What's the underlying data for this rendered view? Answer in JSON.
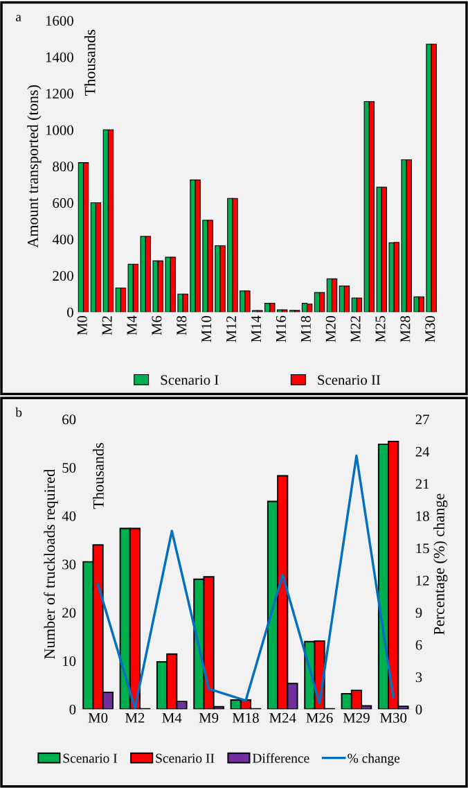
{
  "chart_data": [
    {
      "type": "bar",
      "categories": [
        "M0",
        null,
        "M2",
        null,
        "M4",
        null,
        "M6",
        null,
        "M8",
        null,
        "M10",
        null,
        "M12",
        null,
        "M14",
        null,
        "M16",
        null,
        "M18",
        null,
        "M20",
        null,
        "M22",
        null,
        "M25",
        null,
        "M28",
        null,
        "M30"
      ],
      "ylabel": "Amount transported (tons)",
      "annotations": [
        "a",
        "Thousands"
      ],
      "ylim": [
        0,
        1600
      ],
      "yticks": [
        0,
        200,
        400,
        600,
        800,
        1000,
        1200,
        1400,
        1600
      ],
      "legend": "bottom",
      "grid": false,
      "series": [
        {
          "name": "Scenario I",
          "color": "#00b050",
          "values": [
            820,
            600,
            1000,
            132,
            262,
            415,
            281,
            301,
            99,
            725,
            504,
            364,
            624,
            116,
            8,
            48,
            12,
            9,
            48,
            107,
            182,
            143,
            77,
            1155,
            685,
            380,
            836,
            83,
            1470
          ]
        },
        {
          "name": "Scenario II",
          "color": "#ff0000",
          "values": [
            820,
            600,
            1000,
            132,
            262,
            415,
            281,
            301,
            99,
            725,
            504,
            364,
            624,
            116,
            8,
            48,
            12,
            9,
            44,
            107,
            182,
            143,
            77,
            1155,
            685,
            382,
            836,
            83,
            1470
          ]
        }
      ]
    },
    {
      "type": "bar",
      "categories": [
        "M0",
        "M2",
        "M4",
        "M9",
        "M18",
        "M24",
        "M26",
        "M29",
        "M30"
      ],
      "ylabel": "Number of truckloads required",
      "y2label": "Percentage (%) change",
      "annotations": [
        "b",
        "Thousands"
      ],
      "ylim": [
        0,
        60
      ],
      "yticks": [
        0,
        10,
        20,
        30,
        40,
        50,
        60
      ],
      "y2lim": [
        0,
        27
      ],
      "y2ticks": [
        0,
        3,
        6,
        9,
        12,
        15,
        18,
        21,
        24,
        27
      ],
      "legend": "bottom",
      "grid": false,
      "series": [
        {
          "name": "Scenario I",
          "color": "#00b050",
          "values": [
            30.5,
            37.4,
            9.8,
            26.9,
            1.9,
            43.0,
            14.0,
            3.2,
            54.8
          ]
        },
        {
          "name": "Scenario II",
          "color": "#ff0000",
          "values": [
            34.0,
            37.4,
            11.4,
            27.4,
            1.9,
            48.3,
            14.1,
            3.9,
            55.4
          ]
        },
        {
          "name": "Difference",
          "color": "#7030a0",
          "values": [
            3.5,
            0.1,
            1.6,
            0.5,
            0.1,
            5.3,
            0.1,
            0.7,
            0.6
          ]
        },
        {
          "name": "% change",
          "color": "#0070c0",
          "type": "line",
          "axis": "y2",
          "values": [
            11.6,
            0.1,
            16.6,
            1.9,
            0.8,
            12.5,
            0.55,
            23.6,
            1.1
          ]
        }
      ]
    }
  ]
}
